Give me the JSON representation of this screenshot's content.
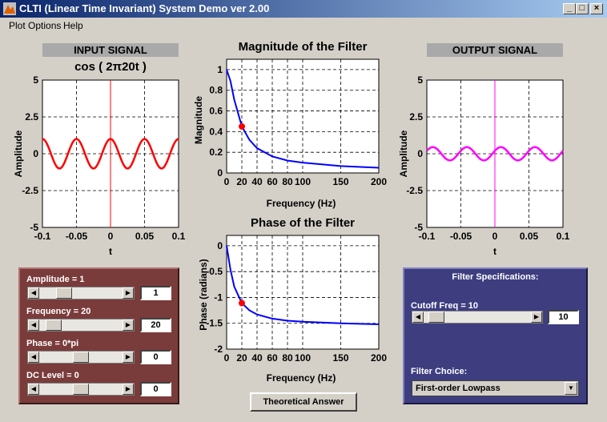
{
  "window": {
    "title": "CLTI (Linear Time Invariant) System Demo ver 2.00",
    "min_glyph": "_",
    "max_glyph": "□",
    "close_glyph": "×"
  },
  "menu": {
    "items": [
      "Plot Options",
      "Help"
    ]
  },
  "input": {
    "header": "INPUT SIGNAL",
    "formula": "cos ( 2π20t )"
  },
  "output": {
    "header": "OUTPUT SIGNAL"
  },
  "input_plot": {
    "yticks": [
      "5",
      "2.5",
      "0",
      "-2.5",
      "-5"
    ],
    "xticks": [
      "-0.1",
      "-0.05",
      "0",
      "0.05",
      "0.1"
    ],
    "ylabel": "Amplitude",
    "xlabel": "t"
  },
  "output_plot": {
    "yticks": [
      "5",
      "2.5",
      "0",
      "-2.5",
      "-5"
    ],
    "xticks": [
      "-0.1",
      "-0.05",
      "0",
      "0.05",
      "0.1"
    ],
    "ylabel": "Amplitude",
    "xlabel": "t"
  },
  "mag_plot": {
    "title": "Magnitude of the Filter",
    "yticks": [
      "1",
      "0.8",
      "0.6",
      "0.4",
      "0.2",
      "0"
    ],
    "xticks": [
      "0",
      "20",
      "40",
      "60",
      "80",
      "100",
      "150",
      "200"
    ],
    "ylabel": "Magnitude",
    "xlabel": "Frequency (Hz)"
  },
  "phase_plot": {
    "title": "Phase of the Filter",
    "yticks": [
      "0",
      "-0.5",
      "-1",
      "-1.5",
      "-2"
    ],
    "xticks": [
      "0",
      "20",
      "40",
      "60",
      "80",
      "100",
      "150",
      "200"
    ],
    "ylabel": "Phase (radians)",
    "xlabel": "Frequency (Hz)"
  },
  "controls": {
    "amplitude": {
      "label": "Amplitude = 1",
      "value": "1",
      "level": 0.25
    },
    "frequency": {
      "label": "Frequency = 20",
      "value": "20",
      "level": 0.1
    },
    "phase": {
      "label": "Phase = 0*pi",
      "value": "0",
      "level": 0.5
    },
    "dc": {
      "label": "DC Level = 0",
      "value": "0",
      "level": 0.5
    }
  },
  "filter": {
    "header": "Filter Specifications:",
    "cutoff_label": "Cutoff Freq = 10",
    "cutoff_value": "10",
    "cutoff_level": 0.05,
    "choice_label": "Filter Choice:",
    "choice_value": "First-order Lowpass"
  },
  "theoretical_button": "Theoretical Answer",
  "colors": {
    "input_curve": "#ff0000",
    "output_curve": "#ff00ff",
    "filter_curve": "#0000ff",
    "marker": "#ff0000"
  },
  "chart_data": [
    {
      "type": "line",
      "title": "cos ( 2π20t )",
      "xlabel": "t",
      "ylabel": "Amplitude",
      "xlim": [
        -0.1,
        0.1
      ],
      "ylim": [
        -5,
        5
      ],
      "grid": true,
      "series": [
        {
          "name": "input",
          "function": "cos(2*pi*20*t)",
          "amplitude": 1,
          "frequency_hz": 20
        }
      ]
    },
    {
      "type": "line",
      "title": "Magnitude of the Filter",
      "xlabel": "Frequency (Hz)",
      "ylabel": "Magnitude",
      "xlim": [
        0,
        200
      ],
      "ylim": [
        0,
        1.1
      ],
      "grid": true,
      "x": [
        0,
        5,
        10,
        20,
        30,
        40,
        60,
        80,
        100,
        150,
        200
      ],
      "values": [
        1.0,
        0.89,
        0.71,
        0.45,
        0.32,
        0.24,
        0.16,
        0.12,
        0.1,
        0.067,
        0.05
      ],
      "marker": {
        "x": 20,
        "y": 0.45
      }
    },
    {
      "type": "line",
      "title": "Phase of the Filter",
      "xlabel": "Frequency (Hz)",
      "ylabel": "Phase (radians)",
      "xlim": [
        0,
        200
      ],
      "ylim": [
        -2,
        0.2
      ],
      "grid": true,
      "x": [
        0,
        5,
        10,
        20,
        30,
        40,
        60,
        80,
        100,
        150,
        200
      ],
      "values": [
        0,
        -0.46,
        -0.79,
        -1.11,
        -1.25,
        -1.33,
        -1.41,
        -1.45,
        -1.47,
        -1.5,
        -1.52
      ],
      "marker": {
        "x": 20,
        "y": -1.11
      }
    },
    {
      "type": "line",
      "title": "OUTPUT SIGNAL",
      "xlabel": "t",
      "ylabel": "Amplitude",
      "xlim": [
        -0.1,
        0.1
      ],
      "ylim": [
        -5,
        5
      ],
      "grid": true,
      "series": [
        {
          "name": "output",
          "amplitude": 0.45,
          "frequency_hz": 20,
          "phase_rad": -1.11
        }
      ]
    }
  ]
}
